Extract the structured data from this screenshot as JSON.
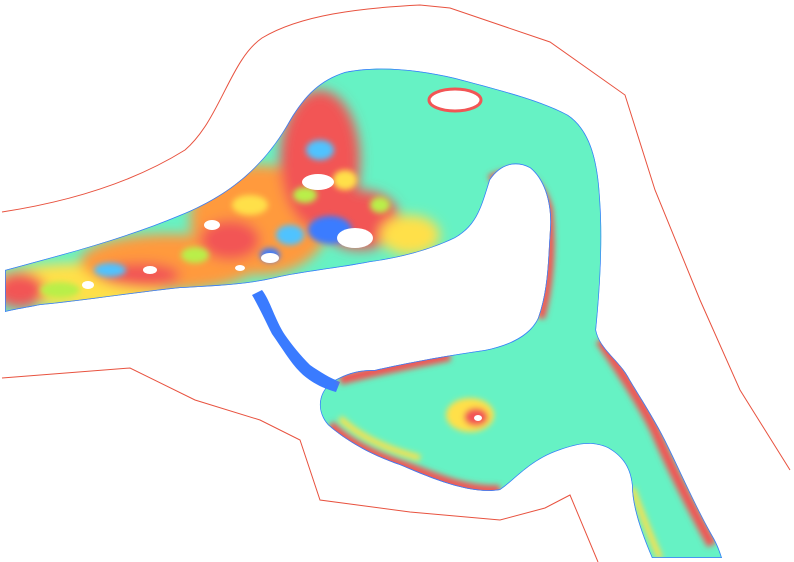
{
  "map": {
    "background": "#ffffff",
    "boundary_color": "#e8523f",
    "palette": {
      "base": "#66f2c4",
      "low": "#3a7bff",
      "mid_low": "#4fc3ff",
      "mid": "#b9ef4a",
      "mid_high": "#ffe04a",
      "high": "#ff9a3c",
      "peak": "#f25555",
      "island": "#ffffff"
    }
  }
}
